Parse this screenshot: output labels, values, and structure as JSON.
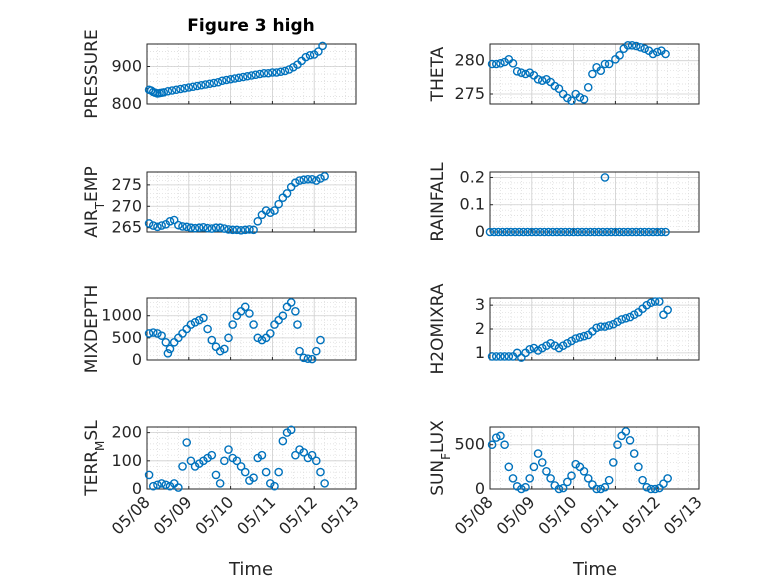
{
  "figure_title": "Figure 3 high",
  "colors": {
    "marker": "#0072BD",
    "axis": "#262626",
    "grid": "#d9d9d9"
  },
  "chart_data": [
    {
      "type": "scatter",
      "id": "pressure",
      "ylabel": "PRESSURE",
      "ylabel_sub": "",
      "ylim": [
        800,
        960
      ],
      "yticks": [
        800,
        900
      ],
      "yticklabels": [
        "800",
        "900"
      ],
      "x": [
        0.05,
        0.1,
        0.15,
        0.2,
        0.25,
        0.3,
        0.35,
        0.4,
        0.5,
        0.6,
        0.7,
        0.8,
        0.9,
        1.0,
        1.1,
        1.2,
        1.3,
        1.4,
        1.5,
        1.6,
        1.7,
        1.8,
        1.9,
        2.0,
        2.1,
        2.2,
        2.3,
        2.4,
        2.5,
        2.6,
        2.7,
        2.8,
        2.9,
        3.0,
        3.1,
        3.2,
        3.3,
        3.4,
        3.5,
        3.6,
        3.7,
        3.8,
        3.9,
        4.0,
        4.1,
        4.2
      ],
      "y": [
        838,
        836,
        832,
        830,
        828,
        829,
        830,
        831,
        834,
        836,
        838,
        840,
        842,
        844,
        846,
        848,
        850,
        852,
        854,
        856,
        858,
        862,
        864,
        866,
        868,
        870,
        872,
        874,
        876,
        878,
        880,
        882,
        882,
        884,
        884,
        886,
        888,
        892,
        898,
        905,
        915,
        925,
        930,
        932,
        940,
        955
      ]
    },
    {
      "type": "scatter",
      "id": "theta",
      "ylabel": "THETA",
      "ylabel_sub": "",
      "ylim": [
        273.5,
        282.5
      ],
      "yticks": [
        275,
        280
      ],
      "yticklabels": [
        "275",
        "280"
      ],
      "x": [
        0.05,
        0.15,
        0.25,
        0.35,
        0.45,
        0.55,
        0.65,
        0.75,
        0.85,
        0.95,
        1.05,
        1.15,
        1.25,
        1.35,
        1.45,
        1.55,
        1.65,
        1.75,
        1.85,
        1.95,
        2.05,
        2.15,
        2.25,
        2.35,
        2.45,
        2.55,
        2.65,
        2.75,
        2.85,
        3.0,
        3.1,
        3.2,
        3.3,
        3.4,
        3.5,
        3.6,
        3.7,
        3.8,
        3.9,
        4.0,
        4.1,
        4.2
      ],
      "y": [
        279.5,
        279.5,
        279.6,
        279.8,
        280.2,
        279.6,
        278.4,
        278.2,
        278.0,
        278.2,
        277.8,
        277.2,
        277.0,
        277.2,
        276.8,
        276.2,
        275.8,
        275.0,
        274.4,
        274.0,
        275.0,
        274.5,
        274.2,
        276.0,
        278.0,
        279.0,
        278.5,
        279.5,
        279.5,
        280.2,
        280.8,
        281.8,
        282.3,
        282.3,
        282.2,
        282.0,
        281.8,
        281.5,
        281.0,
        281.3,
        281.5,
        281.0
      ]
    },
    {
      "type": "scatter",
      "id": "air_temp",
      "ylabel": "AIR",
      "ylabel_sub": "T",
      "ylabel_after": "EMP",
      "ylim": [
        264,
        278
      ],
      "yticks": [
        265,
        270,
        275
      ],
      "yticklabels": [
        "265",
        "270",
        "275"
      ],
      "x": [
        0.05,
        0.15,
        0.25,
        0.35,
        0.45,
        0.55,
        0.65,
        0.75,
        0.85,
        0.95,
        1.05,
        1.15,
        1.25,
        1.35,
        1.45,
        1.55,
        1.65,
        1.75,
        1.85,
        1.95,
        2.05,
        2.15,
        2.25,
        2.35,
        2.45,
        2.55,
        2.65,
        2.75,
        2.85,
        2.95,
        3.05,
        3.15,
        3.25,
        3.35,
        3.45,
        3.55,
        3.65,
        3.75,
        3.85,
        3.95,
        4.05,
        4.15,
        4.25
      ],
      "y": [
        266,
        265.5,
        265.2,
        265.5,
        265.8,
        266.5,
        266.8,
        265.6,
        265.3,
        265.2,
        265.0,
        264.9,
        265.0,
        265.1,
        264.9,
        264.8,
        265.0,
        265.0,
        264.8,
        264.6,
        264.5,
        264.5,
        264.4,
        264.5,
        264.6,
        264.5,
        266.5,
        268.0,
        269.0,
        268.5,
        269.0,
        270.5,
        272.0,
        273.0,
        274.5,
        275.5,
        276.0,
        276.2,
        276.3,
        276.3,
        276.0,
        276.5,
        277.0
      ]
    },
    {
      "type": "scatter",
      "id": "rainfall",
      "ylabel": "RAINFALL",
      "ylabel_sub": "",
      "ylim": [
        0,
        0.22
      ],
      "yticks": [
        0,
        0.1,
        0.2
      ],
      "yticklabels": [
        "0",
        "0.1",
        "0.2"
      ],
      "x": [
        0.0,
        0.1,
        0.2,
        0.3,
        0.4,
        0.5,
        0.6,
        0.7,
        0.8,
        0.9,
        1.0,
        1.1,
        1.2,
        1.3,
        1.4,
        1.5,
        1.6,
        1.7,
        1.8,
        1.9,
        2.0,
        2.1,
        2.2,
        2.3,
        2.4,
        2.5,
        2.6,
        2.7,
        2.75,
        2.8,
        2.9,
        3.0,
        3.1,
        3.2,
        3.3,
        3.4,
        3.5,
        3.6,
        3.7,
        3.8,
        3.9,
        4.0,
        4.1,
        4.2
      ],
      "y": [
        0,
        0,
        0,
        0,
        0,
        0,
        0,
        0,
        0,
        0,
        0,
        0,
        0,
        0,
        0,
        0,
        0,
        0,
        0,
        0,
        0,
        0,
        0,
        0,
        0,
        0,
        0,
        0,
        0.2,
        0,
        0,
        0,
        0,
        0,
        0,
        0,
        0,
        0,
        0,
        0,
        0,
        0,
        0,
        0
      ]
    },
    {
      "type": "scatter",
      "id": "mixdepth",
      "ylabel": "MIXDEPTH",
      "ylabel_sub": "",
      "ylim": [
        0,
        1400
      ],
      "yticks": [
        0,
        500,
        1000
      ],
      "yticklabels": [
        "0",
        "500",
        "1000"
      ],
      "x": [
        0.05,
        0.15,
        0.25,
        0.35,
        0.45,
        0.5,
        0.55,
        0.65,
        0.75,
        0.85,
        0.95,
        1.05,
        1.15,
        1.25,
        1.35,
        1.45,
        1.55,
        1.65,
        1.75,
        1.85,
        1.95,
        2.05,
        2.15,
        2.25,
        2.35,
        2.45,
        2.55,
        2.65,
        2.75,
        2.85,
        2.95,
        3.05,
        3.15,
        3.25,
        3.35,
        3.45,
        3.55,
        3.6,
        3.65,
        3.75,
        3.85,
        3.95,
        4.05,
        4.15
      ],
      "y": [
        600,
        620,
        600,
        550,
        400,
        150,
        250,
        400,
        500,
        600,
        700,
        800,
        850,
        900,
        950,
        700,
        450,
        300,
        200,
        250,
        500,
        800,
        1000,
        1100,
        1200,
        1050,
        800,
        500,
        450,
        500,
        600,
        800,
        900,
        1000,
        1200,
        1300,
        1100,
        800,
        200,
        50,
        30,
        20,
        200,
        450
      ]
    },
    {
      "type": "scatter",
      "id": "h2omixra",
      "ylabel": "H2OMIXRA",
      "ylabel_sub": "",
      "ylim": [
        0.7,
        3.3
      ],
      "yticks": [
        1,
        2,
        3
      ],
      "yticklabels": [
        "1",
        "2",
        "3"
      ],
      "x": [
        0.05,
        0.15,
        0.25,
        0.35,
        0.45,
        0.55,
        0.65,
        0.75,
        0.85,
        0.95,
        1.05,
        1.15,
        1.25,
        1.35,
        1.45,
        1.55,
        1.65,
        1.75,
        1.85,
        1.95,
        2.05,
        2.15,
        2.25,
        2.35,
        2.45,
        2.55,
        2.65,
        2.75,
        2.85,
        2.95,
        3.05,
        3.15,
        3.25,
        3.35,
        3.45,
        3.55,
        3.65,
        3.75,
        3.85,
        3.95,
        4.05,
        4.15,
        4.25
      ],
      "y": [
        0.85,
        0.85,
        0.85,
        0.85,
        0.85,
        0.85,
        1.0,
        0.8,
        1.0,
        1.15,
        1.2,
        1.1,
        1.2,
        1.3,
        1.4,
        1.3,
        1.2,
        1.3,
        1.4,
        1.5,
        1.6,
        1.65,
        1.7,
        1.75,
        1.9,
        2.05,
        2.1,
        2.1,
        2.15,
        2.2,
        2.3,
        2.4,
        2.45,
        2.5,
        2.6,
        2.7,
        2.85,
        3.0,
        3.1,
        3.15,
        3.15,
        2.6,
        2.8
      ]
    },
    {
      "type": "scatter",
      "id": "terr_msl",
      "ylabel": "TERR",
      "ylabel_sub": "M",
      "ylabel_after": "SL",
      "ylim": [
        0,
        220
      ],
      "yticks": [
        0,
        100,
        200
      ],
      "yticklabels": [
        "0",
        "100",
        "200"
      ],
      "x": [
        0.05,
        0.15,
        0.25,
        0.35,
        0.45,
        0.55,
        0.65,
        0.75,
        0.85,
        0.95,
        1.05,
        1.15,
        1.25,
        1.35,
        1.45,
        1.55,
        1.65,
        1.75,
        1.85,
        1.95,
        2.05,
        2.15,
        2.25,
        2.35,
        2.45,
        2.55,
        2.65,
        2.75,
        2.85,
        2.95,
        3.05,
        3.15,
        3.25,
        3.35,
        3.45,
        3.55,
        3.65,
        3.75,
        3.85,
        3.95,
        4.05,
        4.15,
        4.25
      ],
      "y": [
        50,
        10,
        15,
        20,
        15,
        10,
        20,
        5,
        80,
        165,
        100,
        80,
        90,
        100,
        110,
        120,
        50,
        20,
        100,
        140,
        110,
        100,
        80,
        60,
        30,
        40,
        110,
        120,
        60,
        20,
        10,
        60,
        170,
        200,
        210,
        120,
        140,
        130,
        110,
        120,
        100,
        60,
        20
      ]
    },
    {
      "type": "scatter",
      "id": "sun_flux",
      "ylabel": "SUN",
      "ylabel_sub": "F",
      "ylabel_after": "LUX",
      "ylim": [
        0,
        700
      ],
      "yticks": [
        0,
        500
      ],
      "yticklabels": [
        "0",
        "500"
      ],
      "x": [
        0.05,
        0.15,
        0.25,
        0.35,
        0.45,
        0.55,
        0.65,
        0.75,
        0.85,
        0.95,
        1.05,
        1.15,
        1.25,
        1.35,
        1.45,
        1.55,
        1.65,
        1.75,
        1.85,
        1.95,
        2.05,
        2.15,
        2.25,
        2.35,
        2.45,
        2.55,
        2.65,
        2.75,
        2.85,
        2.95,
        3.05,
        3.15,
        3.25,
        3.35,
        3.45,
        3.55,
        3.65,
        3.75,
        3.85,
        3.95,
        4.05,
        4.15,
        4.25
      ],
      "y": [
        500,
        580,
        600,
        500,
        250,
        120,
        30,
        0,
        20,
        120,
        250,
        400,
        300,
        200,
        120,
        40,
        0,
        10,
        80,
        150,
        280,
        250,
        200,
        120,
        50,
        0,
        0,
        20,
        100,
        300,
        500,
        600,
        650,
        550,
        400,
        250,
        100,
        20,
        0,
        0,
        10,
        60,
        120
      ]
    }
  ],
  "xaxis": {
    "xlim": [
      0,
      5
    ],
    "ticks": [
      0,
      1,
      2,
      3,
      4,
      5
    ],
    "ticklabels": [
      "05/08",
      "05/09",
      "05/10",
      "05/11",
      "05/12",
      "05/13"
    ],
    "label": "Time"
  }
}
